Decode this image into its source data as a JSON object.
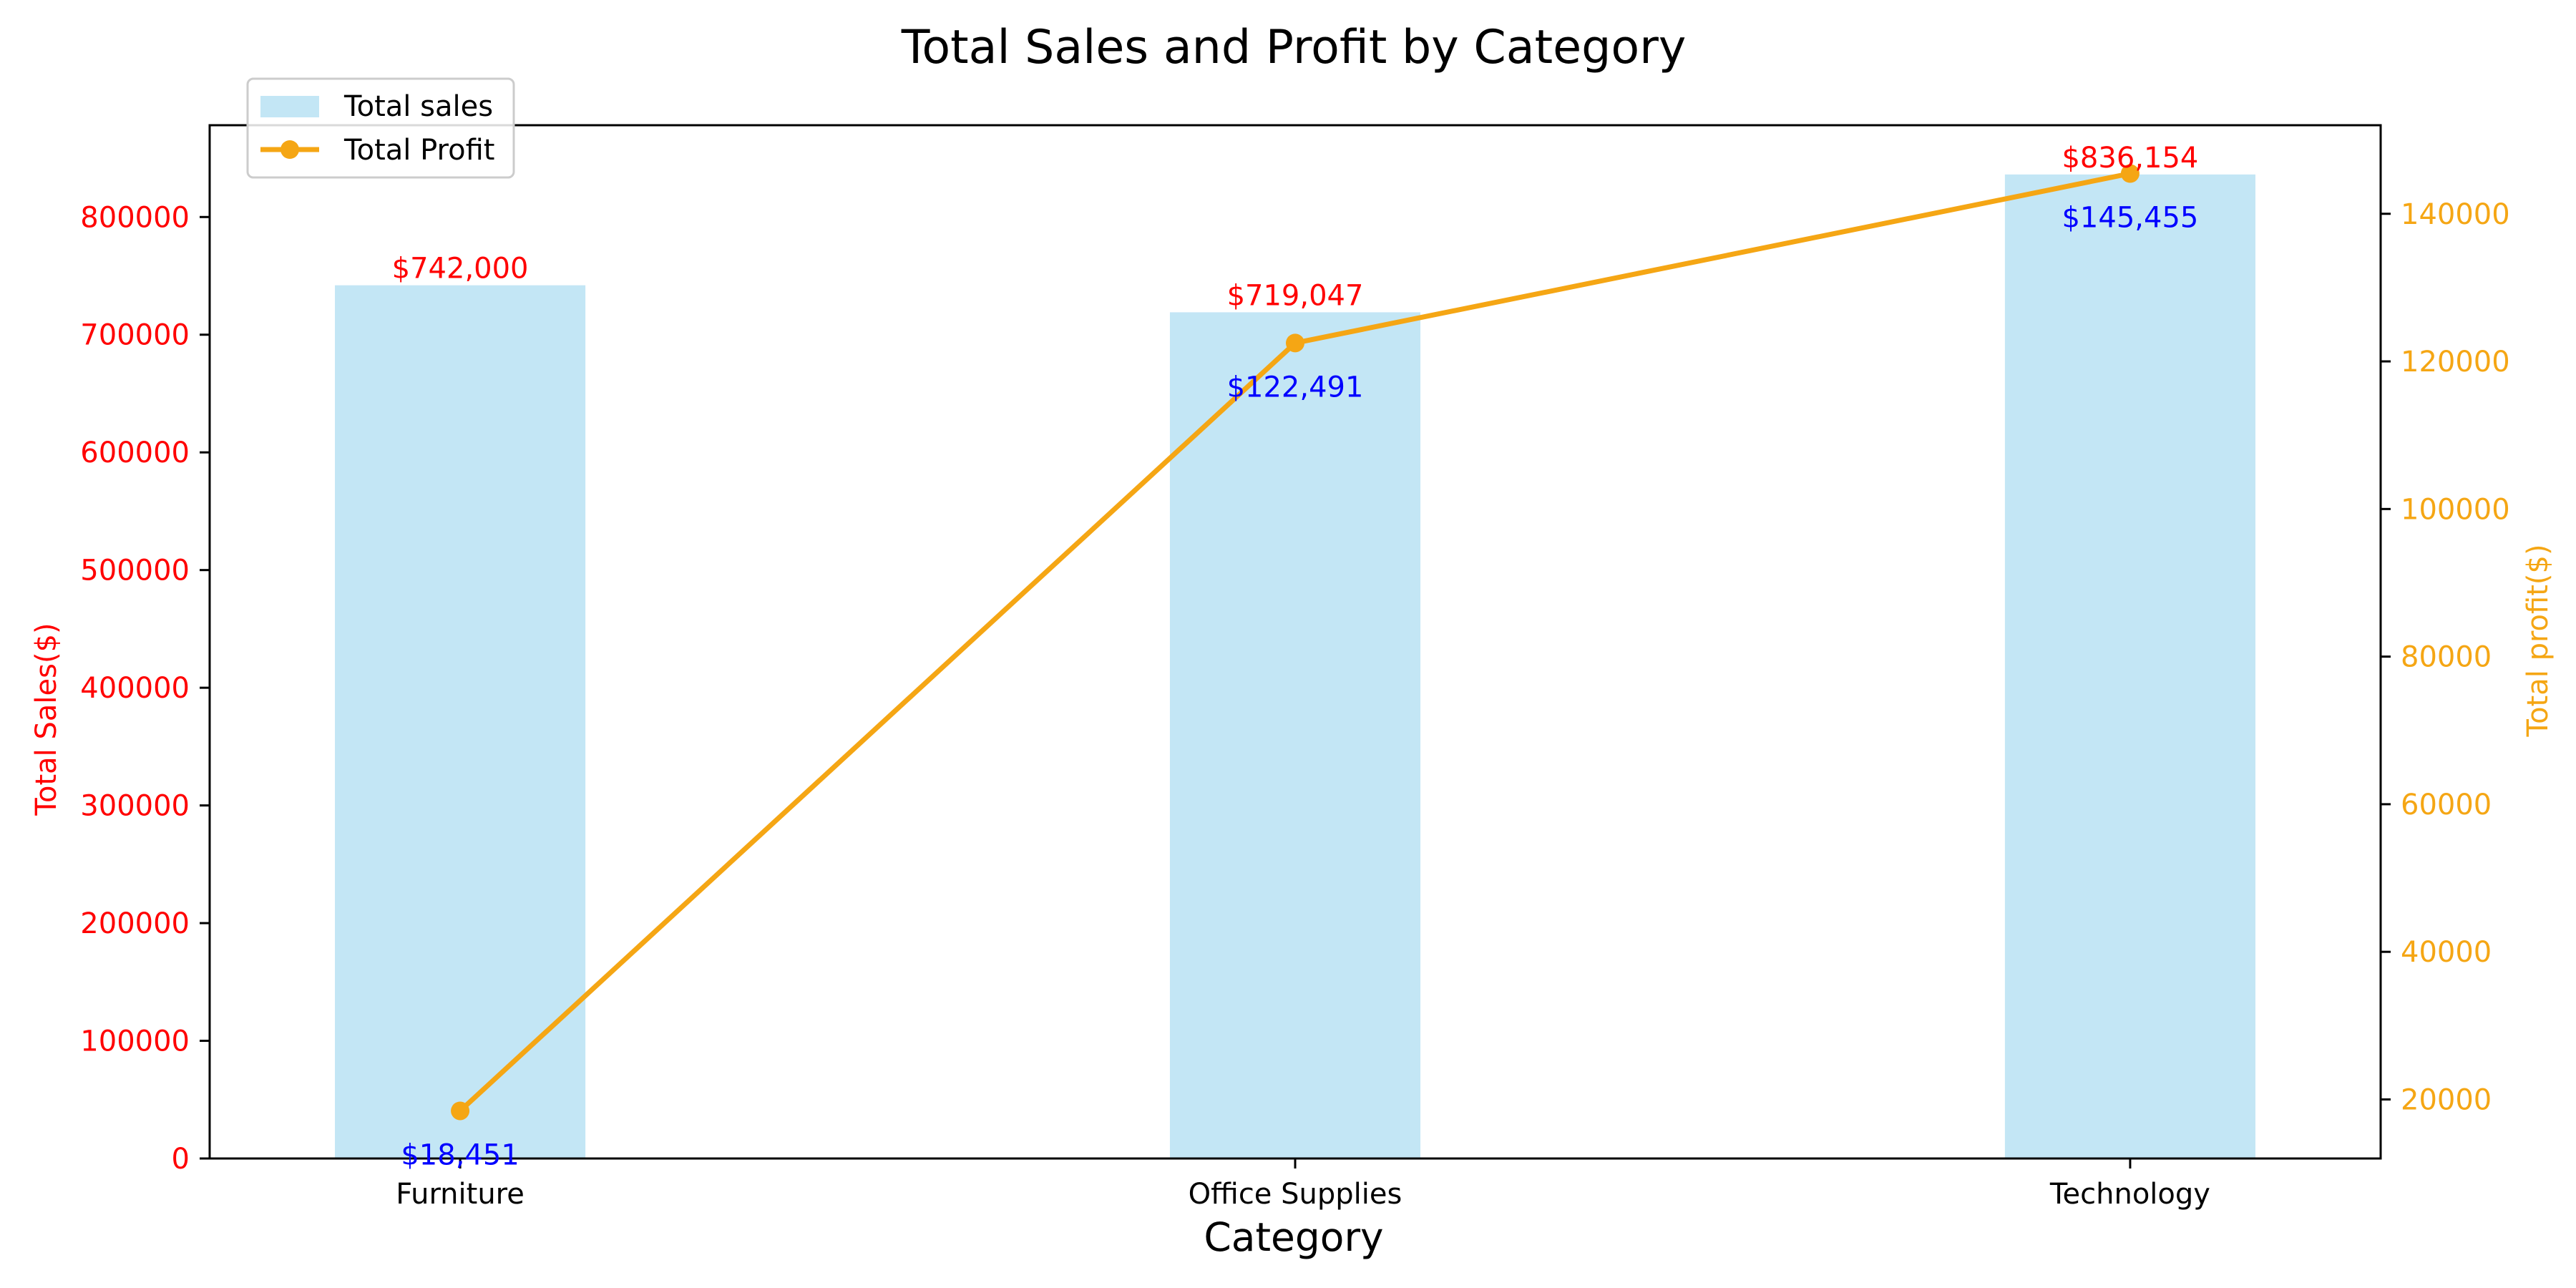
{
  "chart_data": {
    "type": "bar",
    "title": "Total Sales and Profit by Category",
    "xlabel": "Category",
    "ylabel": "Total Sales($)",
    "y2label": "Total profit($)",
    "categories": [
      "Furniture",
      "Office Supplies",
      "Technology"
    ],
    "ylim": [
      0,
      878000
    ],
    "y2lim": [
      12000,
      152000
    ],
    "yticks": [
      0,
      100000,
      200000,
      300000,
      400000,
      500000,
      600000,
      700000,
      800000
    ],
    "y2ticks": [
      20000,
      40000,
      60000,
      80000,
      100000,
      120000,
      140000
    ],
    "series": [
      {
        "name": "Total sales",
        "type": "bar",
        "axis": "left",
        "values": [
          742000,
          719047,
          836154
        ],
        "labels": [
          "$742,000",
          "$719,047",
          "$836,154"
        ]
      },
      {
        "name": "Total Profit",
        "type": "line",
        "axis": "right",
        "values": [
          18451,
          122491,
          145455
        ],
        "labels": [
          "$18,451",
          "$122,491",
          "$145,455"
        ]
      }
    ],
    "legend": "top-left",
    "grid": false,
    "colors": {
      "bar": "#c3e6f5",
      "line": "#f5a614",
      "left_axis": "#ff0000",
      "right_axis": "#f5a614",
      "bar_labels": "#ff0000",
      "line_labels": "#0000ff",
      "text": "#000000"
    }
  }
}
